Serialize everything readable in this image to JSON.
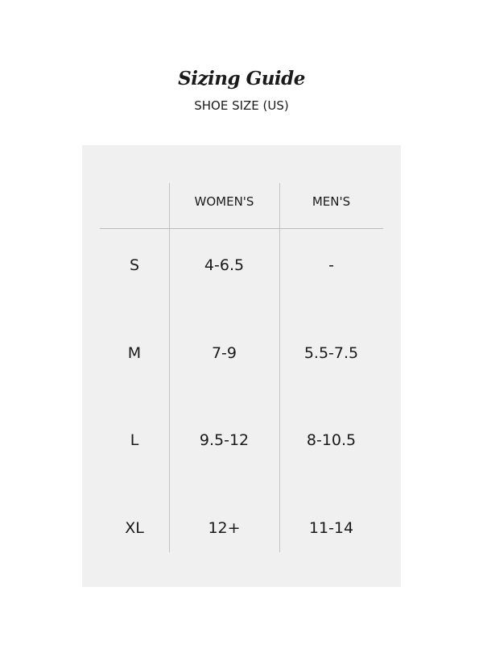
{
  "title": "Sizing Guide",
  "subtitle": "SHOE SIZE (US)",
  "table": {
    "headers": [
      "",
      "WOMEN'S",
      "MEN'S"
    ],
    "rows": [
      [
        "S",
        "4-6.5",
        "-"
      ],
      [
        "M",
        "7-9",
        "5.5-7.5"
      ],
      [
        "L",
        "9.5-12",
        "8-10.5"
      ],
      [
        "XL",
        "12+",
        "11-14"
      ]
    ]
  }
}
